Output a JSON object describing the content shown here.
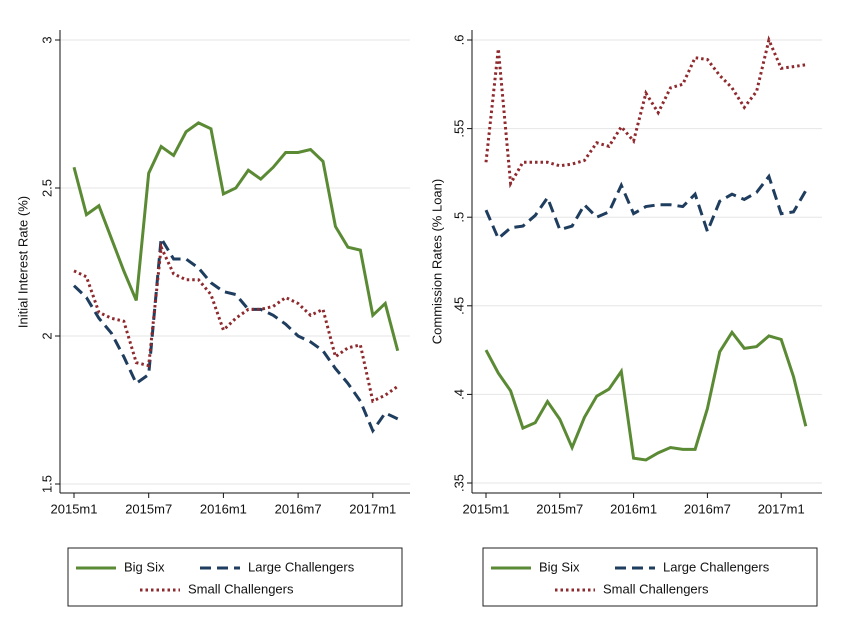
{
  "chart_data": [
    {
      "type": "line",
      "ylabel": "Initial Interest Rate (%)",
      "x": [
        "2015m1",
        "2015m2",
        "2015m3",
        "2015m4",
        "2015m5",
        "2015m6",
        "2015m7",
        "2015m8",
        "2015m9",
        "2015m10",
        "2015m11",
        "2015m12",
        "2016m1",
        "2016m2",
        "2016m3",
        "2016m4",
        "2016m5",
        "2016m6",
        "2016m7",
        "2016m8",
        "2016m9",
        "2016m10",
        "2016m11",
        "2016m12",
        "2017m1",
        "2017m2",
        "2017m3"
      ],
      "xticks": [
        "2015m1",
        "2015m7",
        "2016m1",
        "2016m7",
        "2017m1"
      ],
      "ylim": [
        1.5,
        3
      ],
      "yticks": [
        1.5,
        2,
        2.5,
        3
      ],
      "grid": true,
      "series": [
        {
          "name": "Big Six",
          "color": "#5b8a34",
          "values": [
            2.57,
            2.41,
            2.44,
            2.33,
            2.22,
            2.12,
            2.55,
            2.64,
            2.61,
            2.69,
            2.72,
            2.7,
            2.48,
            2.5,
            2.56,
            2.53,
            2.57,
            2.62,
            2.62,
            2.63,
            2.59,
            2.37,
            2.3,
            2.29,
            2.07,
            2.11,
            1.95
          ]
        },
        {
          "name": "Large Challengers",
          "color": "#1f3d5e",
          "values": [
            2.17,
            2.13,
            2.06,
            2.01,
            1.93,
            1.84,
            1.87,
            2.33,
            2.26,
            2.26,
            2.23,
            2.18,
            2.15,
            2.14,
            2.09,
            2.09,
            2.07,
            2.04,
            2.0,
            1.98,
            1.95,
            1.89,
            1.84,
            1.78,
            1.68,
            1.74,
            1.72
          ]
        },
        {
          "name": "Small Challengers",
          "color": "#8e2a2e",
          "values": [
            2.22,
            2.2,
            2.08,
            2.06,
            2.05,
            1.91,
            1.9,
            2.3,
            2.21,
            2.19,
            2.19,
            2.14,
            2.02,
            2.06,
            2.09,
            2.09,
            2.1,
            2.13,
            2.11,
            2.07,
            2.09,
            1.93,
            1.96,
            1.97,
            1.78,
            1.8,
            1.83
          ]
        }
      ]
    },
    {
      "type": "line",
      "ylabel": "Commission Rates (% Loan)",
      "x": [
        "2015m1",
        "2015m2",
        "2015m3",
        "2015m4",
        "2015m5",
        "2015m6",
        "2015m7",
        "2015m8",
        "2015m9",
        "2015m10",
        "2015m11",
        "2015m12",
        "2016m1",
        "2016m2",
        "2016m3",
        "2016m4",
        "2016m5",
        "2016m6",
        "2016m7",
        "2016m8",
        "2016m9",
        "2016m10",
        "2016m11",
        "2016m12",
        "2017m1",
        "2017m2",
        "2017m3"
      ],
      "xticks": [
        "2015m1",
        "2015m7",
        "2016m1",
        "2016m7",
        "2017m1"
      ],
      "ylim": [
        0.35,
        0.6
      ],
      "yticks": [
        {
          "value": 0.35,
          "label": ".35"
        },
        {
          "value": 0.4,
          "label": ".4"
        },
        {
          "value": 0.45,
          "label": ".45"
        },
        {
          "value": 0.5,
          "label": ".5"
        },
        {
          "value": 0.55,
          "label": ".55"
        },
        {
          "value": 0.6,
          "label": ".6"
        }
      ],
      "grid": true,
      "series": [
        {
          "name": "Big Six",
          "color": "#5b8a34",
          "values": [
            0.425,
            0.412,
            0.402,
            0.381,
            0.384,
            0.396,
            0.386,
            0.37,
            0.387,
            0.399,
            0.403,
            0.413,
            0.364,
            0.363,
            0.367,
            0.37,
            0.369,
            0.369,
            0.392,
            0.424,
            0.435,
            0.426,
            0.427,
            0.433,
            0.431,
            0.41,
            0.382
          ]
        },
        {
          "name": "Large Challengers",
          "color": "#1f3d5e",
          "values": [
            0.504,
            0.488,
            0.494,
            0.495,
            0.501,
            0.511,
            0.493,
            0.495,
            0.507,
            0.5,
            0.503,
            0.518,
            0.502,
            0.506,
            0.507,
            0.507,
            0.506,
            0.513,
            0.492,
            0.509,
            0.513,
            0.51,
            0.514,
            0.523,
            0.502,
            0.503,
            0.515
          ]
        },
        {
          "name": "Small Challengers",
          "color": "#8e2a2e",
          "values": [
            0.531,
            0.595,
            0.519,
            0.531,
            0.531,
            0.531,
            0.529,
            0.53,
            0.532,
            0.542,
            0.54,
            0.551,
            0.543,
            0.57,
            0.559,
            0.573,
            0.575,
            0.59,
            0.589,
            0.58,
            0.573,
            0.562,
            0.571,
            0.6,
            0.584,
            0.585,
            0.586
          ]
        }
      ]
    }
  ]
}
